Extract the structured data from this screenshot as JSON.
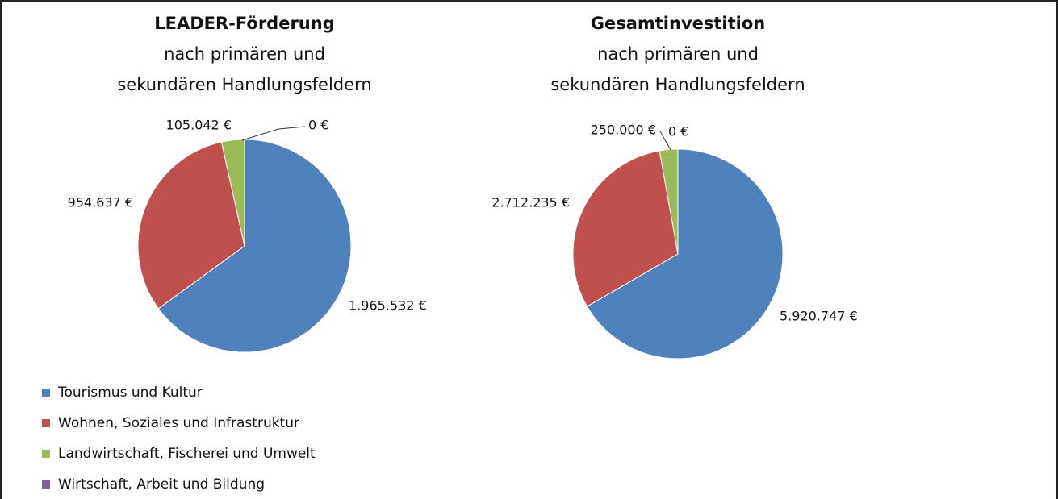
{
  "chart_data": [
    {
      "type": "pie",
      "title": "LEADER-Förderung",
      "subtitle": [
        "nach primären und",
        "sekundären Handlungsfeldern"
      ],
      "values": [
        1965532,
        954637,
        105042,
        0
      ],
      "value_labels": [
        "1.965.532 €",
        "954.637 €",
        "105.042 €",
        "0 €"
      ]
    },
    {
      "type": "pie",
      "title": "Gesamtinvestition",
      "subtitle": [
        "nach primären und",
        "sekundären Handlungsfeldern"
      ],
      "values": [
        5920747,
        2712235,
        250000,
        0
      ],
      "value_labels": [
        "5.920.747 €",
        "2.712.235 €",
        "250.000 €",
        "0 €"
      ]
    }
  ],
  "legend": {
    "categories": [
      "Tourismus und Kultur",
      "Wohnen, Soziales und Infrastruktur",
      "Landwirtschaft, Fischerei und Umwelt",
      "Wirtschaft, Arbeit und Bildung"
    ],
    "colors": [
      "#4f81bd",
      "#c0504d",
      "#9bbb59",
      "#8064a2"
    ]
  }
}
